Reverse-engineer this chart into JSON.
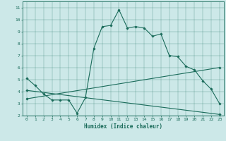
{
  "xlabel": "Humidex (Indice chaleur)",
  "xlim": [
    -0.5,
    23.5
  ],
  "ylim": [
    2,
    11.5
  ],
  "yticks": [
    2,
    3,
    4,
    5,
    6,
    7,
    8,
    9,
    10,
    11
  ],
  "xticks": [
    0,
    1,
    2,
    3,
    4,
    5,
    6,
    7,
    8,
    9,
    10,
    11,
    12,
    13,
    14,
    15,
    16,
    17,
    18,
    19,
    20,
    21,
    22,
    23
  ],
  "bg_color": "#cce8e8",
  "line_color": "#1a6b5a",
  "main_x": [
    0,
    1,
    2,
    3,
    4,
    5,
    6,
    7,
    8,
    9,
    10,
    11,
    12,
    13,
    14,
    15,
    16,
    17,
    18,
    19,
    20,
    21,
    22,
    23
  ],
  "main_y": [
    5.1,
    4.5,
    3.8,
    3.3,
    3.3,
    3.3,
    2.2,
    3.5,
    7.6,
    9.4,
    9.5,
    10.8,
    9.3,
    9.4,
    9.3,
    8.6,
    8.8,
    7.0,
    6.9,
    6.1,
    5.8,
    4.9,
    4.2,
    3.0
  ],
  "line2_x": [
    0,
    23
  ],
  "line2_y": [
    3.4,
    6.0
  ],
  "line3_x": [
    0,
    23
  ],
  "line3_y": [
    4.1,
    2.1
  ],
  "marker_main_x": [
    0,
    1,
    2,
    3,
    4,
    5,
    6,
    7,
    8,
    9,
    10,
    11,
    12,
    13,
    14,
    15,
    16,
    17,
    18,
    19,
    20,
    21,
    22,
    23
  ],
  "marker_main_y": [
    5.1,
    4.5,
    3.8,
    3.3,
    3.3,
    3.3,
    2.2,
    3.5,
    7.6,
    9.4,
    9.5,
    10.8,
    9.3,
    9.4,
    9.3,
    8.6,
    8.8,
    7.0,
    6.9,
    6.1,
    5.8,
    4.9,
    4.2,
    3.0
  ],
  "marker_line2_x": [
    0,
    23
  ],
  "marker_line2_y": [
    3.4,
    6.0
  ],
  "marker_line3_x": [
    0,
    23
  ],
  "marker_line3_y": [
    4.1,
    2.1
  ]
}
